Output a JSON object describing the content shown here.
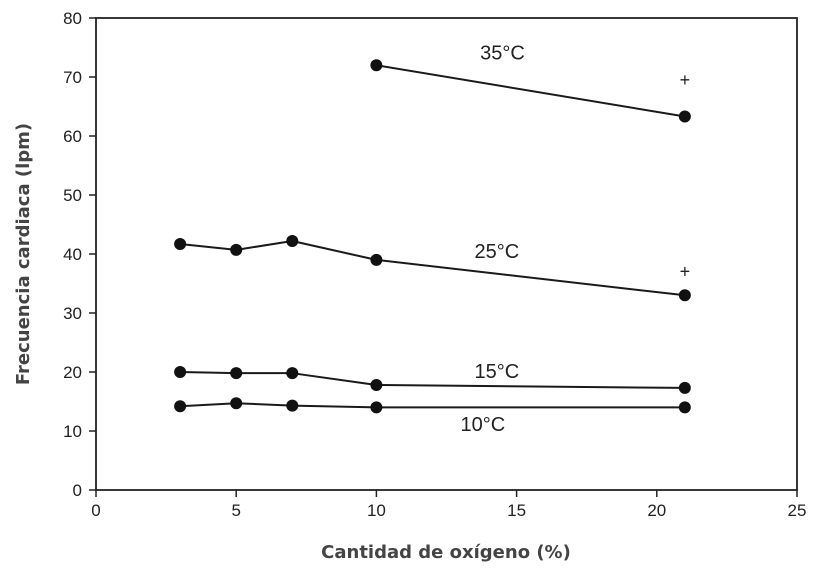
{
  "chart_data": {
    "type": "line",
    "xlabel": "Cantidad de oxígeno  (%)",
    "ylabel": "Frecuencia cardiaca (lpm)",
    "xlim": [
      0,
      25
    ],
    "ylim": [
      0,
      80
    ],
    "xticks": [
      0,
      5,
      10,
      15,
      20,
      25
    ],
    "yticks": [
      0,
      10,
      20,
      30,
      40,
      50,
      60,
      70,
      80
    ],
    "grid": false,
    "legend": "none",
    "series": [
      {
        "name": "35°C",
        "x": [
          10,
          21
        ],
        "y": [
          72,
          63.3
        ]
      },
      {
        "name": "25°C",
        "x": [
          3,
          5,
          7,
          10,
          21
        ],
        "y": [
          41.7,
          40.7,
          42.2,
          39,
          33
        ]
      },
      {
        "name": "15°C",
        "x": [
          3,
          5,
          7,
          10,
          21
        ],
        "y": [
          20,
          19.8,
          19.8,
          17.8,
          17.3
        ]
      },
      {
        "name": "10°C",
        "x": [
          3,
          5,
          7,
          10,
          21
        ],
        "y": [
          14.2,
          14.7,
          14.3,
          14,
          14
        ]
      }
    ],
    "annotations": [
      {
        "text": "+",
        "x": 21,
        "y": 69.5
      },
      {
        "text": "+",
        "x": 21,
        "y": 37
      }
    ]
  }
}
